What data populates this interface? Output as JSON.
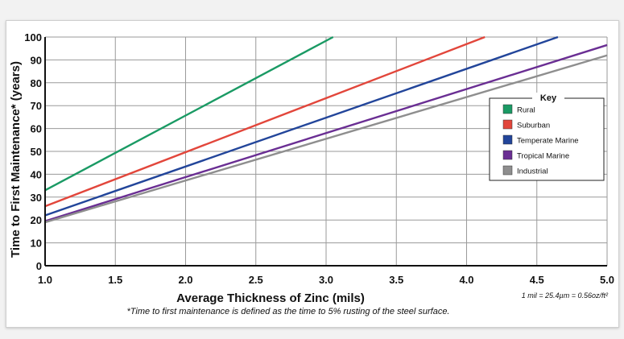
{
  "chart_data": {
    "type": "line",
    "title": "",
    "xlabel": "Average Thickness of Zinc (mils)",
    "ylabel": "Time to First Maintenance* (years)",
    "xlim": [
      1.0,
      5.0
    ],
    "ylim": [
      0,
      100
    ],
    "x_ticks": [
      "1.0",
      "1.5",
      "2.0",
      "2.5",
      "3.0",
      "3.5",
      "4.0",
      "4.5",
      "5.0"
    ],
    "y_ticks": [
      "0",
      "10",
      "20",
      "30",
      "40",
      "50",
      "60",
      "70",
      "80",
      "90",
      "100"
    ],
    "grid": true,
    "legend": {
      "title": "Key",
      "placement": "right"
    },
    "series": [
      {
        "name": "Rural",
        "color": "#1a9a64",
        "x": [
          1.0,
          3.05
        ],
        "y": [
          33,
          100
        ]
      },
      {
        "name": "Suburban",
        "color": "#e2463b",
        "x": [
          1.0,
          4.13
        ],
        "y": [
          26,
          100
        ]
      },
      {
        "name": "Temperate Marine",
        "color": "#22459a",
        "x": [
          1.0,
          4.65
        ],
        "y": [
          22,
          100
        ]
      },
      {
        "name": "Tropical Marine",
        "color": "#6a2e93",
        "x": [
          1.0,
          5.0
        ],
        "y": [
          19.5,
          96.5
        ]
      },
      {
        "name": "Industrial",
        "color": "#8e8e8e",
        "x": [
          1.0,
          5.0
        ],
        "y": [
          19,
          92
        ]
      }
    ],
    "annotations": {
      "unit_note": "1 mil = 25.4µm = 0.56oz/ft²",
      "footnote": "*Time to first maintenance is defined as the time to 5% rusting of the steel surface."
    }
  }
}
